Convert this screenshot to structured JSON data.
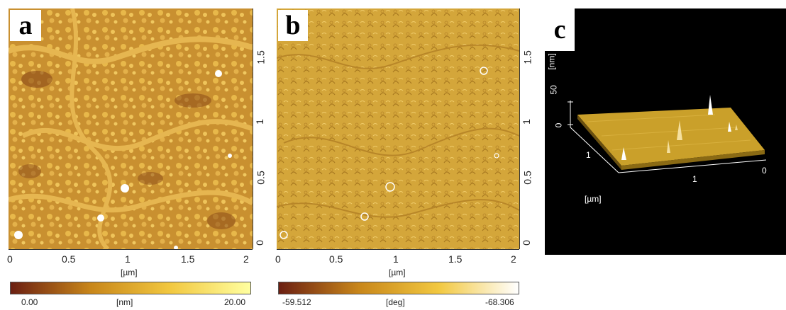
{
  "panels": {
    "a": {
      "letter": "a",
      "x_ticks": [
        "0",
        "0.5",
        "1",
        "1.5",
        "2"
      ],
      "y_ticks": [
        "0",
        "0.5",
        "1",
        "1.5"
      ],
      "x_unit": "[µm]",
      "colorbar": {
        "min": "0.00",
        "unit": "[nm]",
        "max": "20.00",
        "colors": [
          "#6b1f12",
          "#c8861a",
          "#f2c840",
          "#ffffa0"
        ]
      }
    },
    "b": {
      "letter": "b",
      "x_ticks": [
        "0",
        "0.5",
        "1",
        "1.5",
        "2"
      ],
      "y_ticks": [
        "0",
        "0.5",
        "1",
        "1.5"
      ],
      "x_unit": "[µm]",
      "colorbar": {
        "min": "-59.512",
        "unit": "[deg]",
        "max": "-68.306",
        "colors": [
          "#6b1f12",
          "#c8861a",
          "#f2c840",
          "#ffffff"
        ]
      }
    },
    "c": {
      "letter": "c",
      "z_unit": "[nm]",
      "z_ticks": [
        "50",
        "0"
      ],
      "left_ticks": [
        "1"
      ],
      "front_ticks": [
        "1",
        "0"
      ],
      "lateral_unit": "[µm]"
    }
  },
  "colors": {
    "topo_base": "#c99030",
    "topo_dark": "#8a4a18",
    "topo_light": "#f0c860",
    "phase_base": "#d4a63a",
    "surface_3d": "#caa02a",
    "background_3d": "#000000"
  }
}
